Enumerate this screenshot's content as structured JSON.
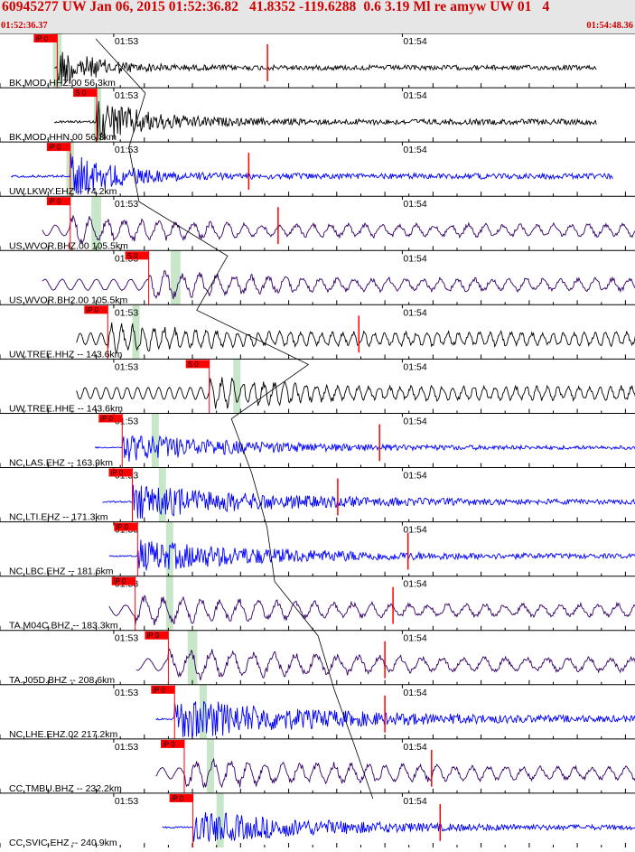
{
  "header": {
    "title": "60945277 UW Jan 06, 2015 01:52:36.82   41.8352 -119.6288  0.6 3.19 Ml re amyw UW 01   4",
    "start_time": "01:52:36.37",
    "end_time": "01:54:48.36"
  },
  "colors": {
    "header_text": "#d00000",
    "header_bg": "#e6e6e6",
    "pick_flag": "#ff0000",
    "pick_window": "#c8e6c8",
    "trace_black": "#000000",
    "trace_blue": "#0000ff",
    "trace_purple": "#330066",
    "moveout_curve": "#000000"
  },
  "chart_data": {
    "type": "line",
    "time_axis": {
      "start": "01:52:36.37",
      "end": "01:54:48.36",
      "minute_ticks": [
        {
          "label": "01:53",
          "seconds": 23.63
        },
        {
          "label": "01:54",
          "seconds": 83.63
        }
      ]
    },
    "traces": [
      {
        "label": "BK.MOD.HHZ.00 56.3km",
        "channel": "HHZ",
        "distance_km": 56.3,
        "color": "black",
        "pick": "iP 0",
        "pick_s": 11.9,
        "window_s": [
          11.0,
          12.8
        ],
        "data_start_s": 11.3,
        "data_end_s": 124.0,
        "s_marker_s": 55.6,
        "amp": 0.75,
        "freq": 3.0,
        "decay": 8
      },
      {
        "label": "BK.MOD.HHN.00 56.3km",
        "channel": "HHN",
        "distance_km": 56.3,
        "color": "black",
        "pick": "S 0",
        "pick_s": 20.1,
        "window_s": [
          19.5,
          21.0
        ],
        "data_start_s": 11.3,
        "data_end_s": 124.0,
        "s_marker_s": null,
        "amp": 0.85,
        "freq": 2.8,
        "decay": 10
      },
      {
        "label": "UW.LKWY.EHZ -- 74.2km",
        "channel": "EHZ",
        "distance_km": 74.2,
        "color": "blue",
        "pick": "iP 0",
        "pick_s": 14.6,
        "window_s": [
          13.8,
          15.4
        ],
        "data_start_s": 2.3,
        "data_end_s": 127.5,
        "s_marker_s": 51.7,
        "amp": 0.85,
        "freq": 3.2,
        "decay": 9
      },
      {
        "label": "US.WVOR.BHZ.00 105.5km",
        "channel": "BHZ",
        "distance_km": 105.5,
        "color": "purple",
        "pick": "iP 0",
        "pick_s": 14.6,
        "window_s": [
          19.0,
          21.0
        ],
        "data_start_s": 8.8,
        "data_end_s": 133.7,
        "s_marker_s": 57.8,
        "amp": 0.55,
        "freq": 0.55,
        "decay": 40
      },
      {
        "label": "US.WVOR.BH2.00 105.5km",
        "channel": "BH2",
        "distance_km": 105.5,
        "color": "purple",
        "pick": "S 0",
        "pick_s": 30.9,
        "window_s": [
          35.5,
          37.5
        ],
        "data_start_s": 8.8,
        "data_end_s": 133.7,
        "s_marker_s": null,
        "amp": 0.55,
        "freq": 0.55,
        "decay": 40
      },
      {
        "label": "UW.TREE.HHZ -- 143.6km",
        "channel": "HHZ",
        "distance_km": 143.6,
        "color": "black",
        "pick": "iP 0",
        "pick_s": 22.4,
        "window_s": [
          27.5,
          29.0
        ],
        "data_start_s": 15.9,
        "data_end_s": 140.7,
        "s_marker_s": 74.6,
        "amp": 0.6,
        "freq": 0.9,
        "decay": 30
      },
      {
        "label": "UW.TREE.HHE -- 143.6km",
        "channel": "HHE",
        "distance_km": 143.6,
        "color": "black",
        "pick": "S 0",
        "pick_s": 43.5,
        "window_s": [
          48.5,
          50.0
        ],
        "data_start_s": 15.9,
        "data_end_s": 140.7,
        "s_marker_s": null,
        "amp": 0.6,
        "freq": 0.9,
        "decay": 30
      },
      {
        "label": "NC.LAS.EHZ -- 163.9km",
        "channel": "EHZ",
        "distance_km": 163.9,
        "color": "blue",
        "pick": "iP 0",
        "pick_s": 25.4,
        "window_s": [
          31.5,
          33.0
        ],
        "data_start_s": 19.7,
        "data_end_s": 144.7,
        "s_marker_s": 78.9,
        "amp": 0.5,
        "freq": 3.0,
        "decay": 25
      },
      {
        "label": "NC.LTI.EHZ -- 171.3km",
        "channel": "EHZ",
        "distance_km": 171.3,
        "color": "blue",
        "pick": "iP 0",
        "pick_s": 27.5,
        "window_s": [
          33.0,
          34.5
        ],
        "data_start_s": 21.3,
        "data_end_s": 146.2,
        "s_marker_s": 70.2,
        "amp": 0.6,
        "freq": 3.0,
        "decay": 28
      },
      {
        "label": "NC.LBC.EHZ -- 181.6km",
        "channel": "EHZ",
        "distance_km": 181.6,
        "color": "blue",
        "pick": "iP 0",
        "pick_s": 28.6,
        "window_s": [
          34.5,
          36.0
        ],
        "data_start_s": 22.7,
        "data_end_s": 147.6,
        "s_marker_s": 84.8,
        "amp": 0.55,
        "freq": 3.0,
        "decay": 30
      },
      {
        "label": "TA.M04C.BHZ -- 183.3km",
        "channel": "BHZ",
        "distance_km": 183.3,
        "color": "purple",
        "pick": "iP 0",
        "pick_s": 28.1,
        "window_s": [
          34.5,
          36.0
        ],
        "data_start_s": 22.7,
        "data_end_s": 147.6,
        "s_marker_s": 81.7,
        "amp": 0.55,
        "freq": 0.5,
        "decay": 60
      },
      {
        "label": "TA.J05D.BHZ -- 208.6km",
        "channel": "BHZ",
        "distance_km": 208.6,
        "color": "purple",
        "pick": "iP 0",
        "pick_s": 35.0,
        "window_s": [
          39.0,
          41.0
        ],
        "data_start_s": 28.3,
        "data_end_s": 153.8,
        "s_marker_s": 80.0,
        "amp": 0.6,
        "freq": 0.45,
        "decay": 60
      },
      {
        "label": "NC.LHE.EHZ.02 217.2km",
        "channel": "EHZ",
        "distance_km": 217.2,
        "color": "blue",
        "pick": "iP 0",
        "pick_s": 36.3,
        "window_s": [
          41.5,
          43.0
        ],
        "data_start_s": 32.4,
        "data_end_s": 157.8,
        "s_marker_s": 80.0,
        "amp": 0.75,
        "freq": 3.0,
        "decay": 28
      },
      {
        "label": "CC.TMBU.BHZ -- 232.2km",
        "channel": "BHZ",
        "distance_km": 232.2,
        "color": "purple",
        "pick": "iP 0",
        "pick_s": 38.3,
        "window_s": [
          43.0,
          44.5
        ],
        "data_start_s": 32.4,
        "data_end_s": 157.8,
        "s_marker_s": 89.7,
        "amp": 0.55,
        "freq": 0.55,
        "decay": 70
      },
      {
        "label": "CC.SVIC.EHZ -- 240.9km",
        "channel": "EHZ",
        "distance_km": 240.9,
        "color": "blue",
        "pick": "iP 0",
        "pick_s": 40.1,
        "window_s": [
          45.0,
          46.5
        ],
        "data_start_s": 33.7,
        "data_end_s": 159.1,
        "s_marker_s": 91.5,
        "amp": 0.6,
        "freq": 3.0,
        "decay": 25
      }
    ]
  }
}
